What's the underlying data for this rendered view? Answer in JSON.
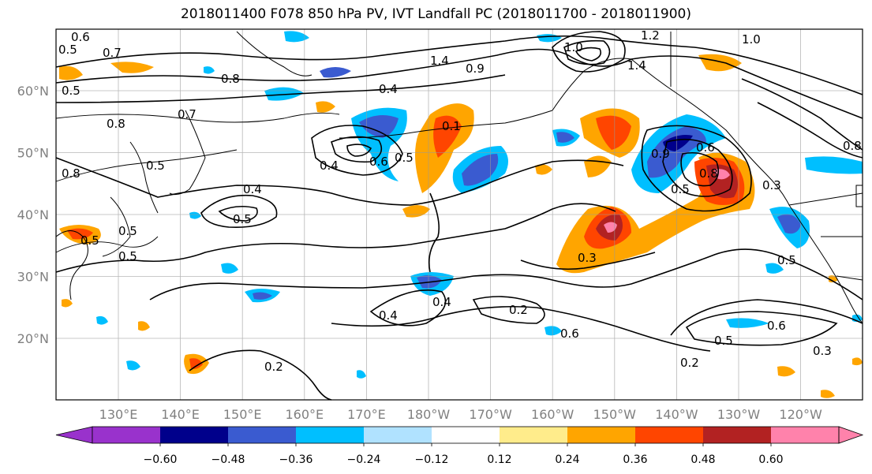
{
  "title": "2018011400 F078 850 hPa PV, IVT Landfall PC (2018011700 - 2018011900)",
  "map": {
    "lon_labels": [
      "130°E",
      "140°E",
      "150°E",
      "160°E",
      "170°E",
      "180°W",
      "170°W",
      "160°W",
      "150°W",
      "140°W",
      "130°W",
      "120°W"
    ],
    "lat_labels": [
      "60°N",
      "50°N",
      "40°N",
      "30°N",
      "20°N"
    ],
    "contour_labels": [
      "0.6",
      "0.5",
      "0.7",
      "1.2",
      "1.0",
      "0.8",
      "1.4",
      "0.9",
      "0.4",
      "0.5",
      "0.8",
      "0.7",
      "0.4",
      "0.6",
      "0.5",
      "0.4",
      "0.5",
      "0.5",
      "0.8",
      "0.9",
      "0.5",
      "0.8",
      "0.6",
      "0.3",
      "0.5",
      "0.3",
      "0.4",
      "0.2",
      "0.2",
      "0.6",
      "0.5",
      "0.2",
      "0.4",
      "0.5",
      "0.6",
      "0.5",
      "0.8",
      "0.5",
      "0.3",
      "0.1",
      "1.0"
    ]
  },
  "colorbar": {
    "ticks": [
      "−0.60",
      "−0.48",
      "−0.36",
      "−0.24",
      "−0.12",
      "0.12",
      "0.24",
      "0.36",
      "0.48",
      "0.60"
    ],
    "colors": [
      "#9932cc",
      "#00008b",
      "#3a5bd0",
      "#00bfff",
      "#b0e2ff",
      "#ffffff",
      "#ffec8b",
      "#ffa500",
      "#ff4500",
      "#b22222",
      "#ff82ab"
    ]
  }
}
